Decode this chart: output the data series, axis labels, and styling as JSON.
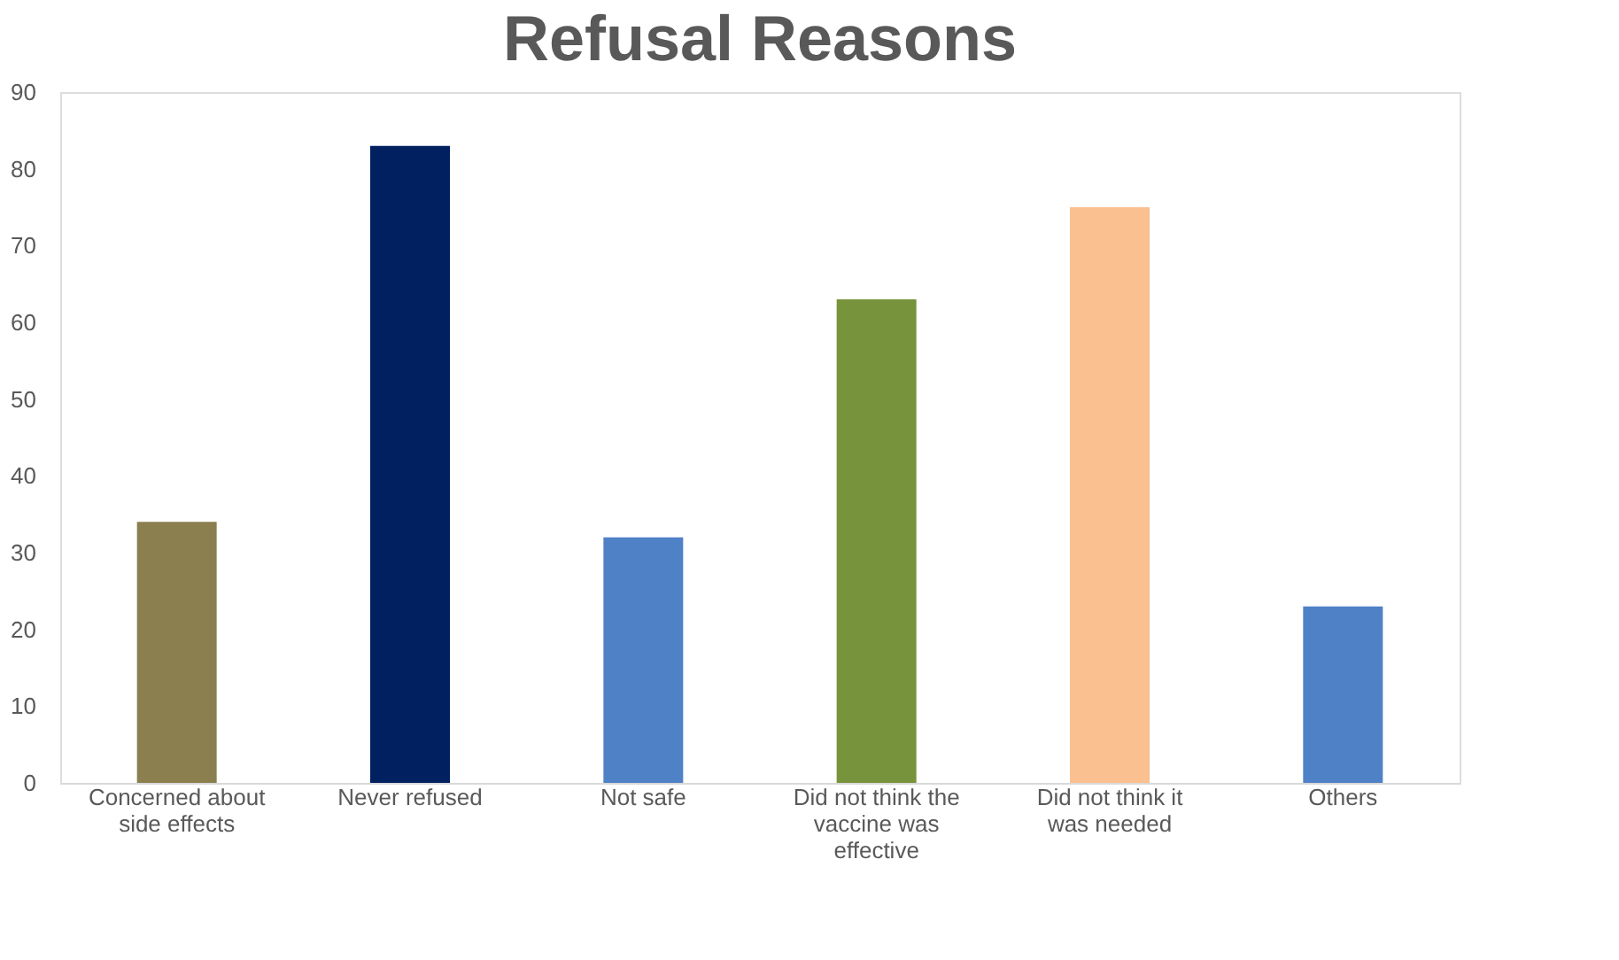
{
  "chart_data": {
    "type": "bar",
    "title": "Refusal Reasons",
    "categories": [
      "Concerned about side effects",
      "Never refused",
      "Not safe",
      "Did not think the vaccine was effective",
      "Did not think it was needed",
      "Others"
    ],
    "values": [
      34,
      83,
      32,
      63,
      75,
      23
    ],
    "colors": [
      "#8b7f4f",
      "#002060",
      "#4f81c7",
      "#77933c",
      "#fac090",
      "#4f81c7"
    ],
    "ylim": [
      0,
      90
    ],
    "yticks": [
      0,
      10,
      20,
      30,
      40,
      50,
      60,
      70,
      80,
      90
    ],
    "grid": false
  }
}
